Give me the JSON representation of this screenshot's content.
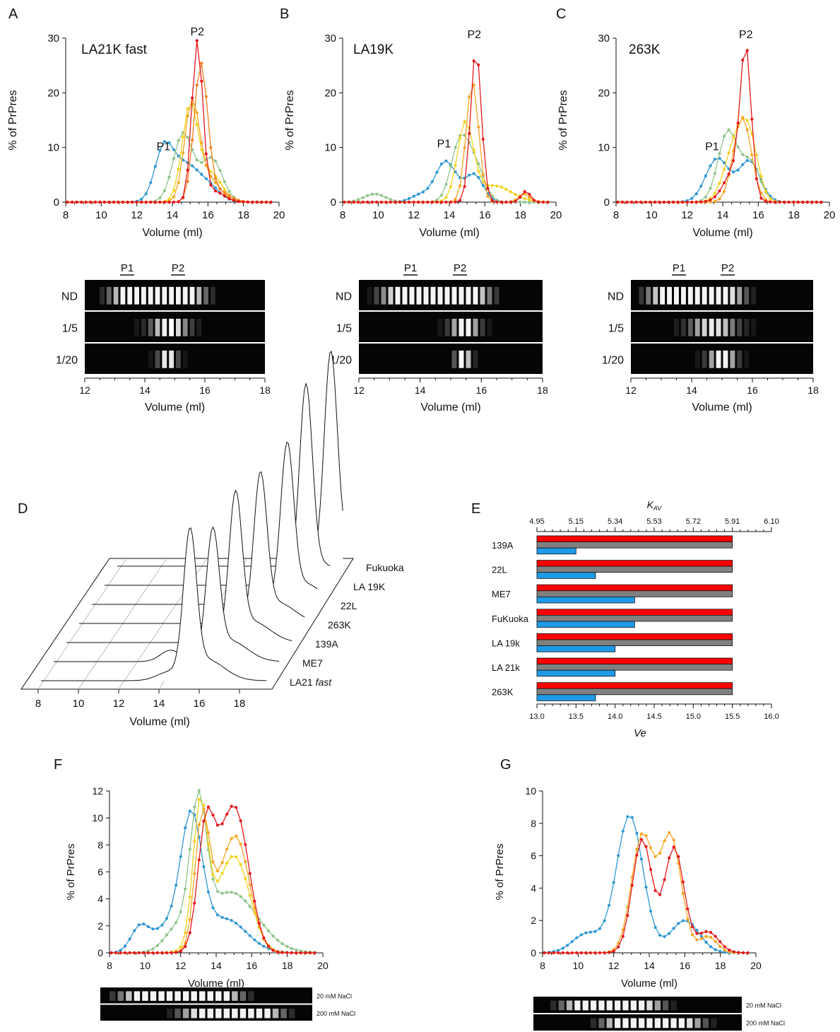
{
  "panels": {
    "A": {
      "letter": "A",
      "label": "LA21K fast",
      "p1": "P1",
      "p2": "P2"
    },
    "B": {
      "letter": "B",
      "label": "LA19K",
      "p1": "P1",
      "p2": "P2"
    },
    "C": {
      "letter": "C",
      "label": "263K",
      "p1": "P1",
      "p2": "P2"
    },
    "D": {
      "letter": "D"
    },
    "E": {
      "letter": "E"
    },
    "F": {
      "letter": "F"
    },
    "G": {
      "letter": "G"
    }
  },
  "common": {
    "ylabel": "% of PrPres",
    "xlabel": "Volume (ml)",
    "blot_rows": [
      "ND",
      "1/5",
      "1/20"
    ]
  },
  "colors": {
    "red": "#e3171b",
    "dark_orange": "#f07f1d",
    "orange": "#f6a623",
    "yellow": "#f2d21f",
    "green": "#8fc48b",
    "blue": "#2e97d4",
    "bar_red": "#ff0000",
    "bar_grey": "#808080",
    "bar_blue": "#1e9be8"
  },
  "chart_data": [
    {
      "panel": "A",
      "type": "line",
      "title": "LA21K fast",
      "xlabel": "Volume (ml)",
      "ylabel": "% of PrPres",
      "xlim": [
        8,
        20
      ],
      "ylim": [
        0,
        30
      ],
      "xticks": [
        8,
        10,
        12,
        14,
        16,
        18,
        20
      ],
      "yticks": [
        0,
        10,
        20,
        30
      ],
      "annotations": [
        {
          "text": "P1",
          "x": 13.5,
          "y": 9.5
        },
        {
          "text": "P2",
          "x": 15.4,
          "y": 30.5
        }
      ],
      "series": [
        {
          "color": "blue",
          "peaks": [
            [
              13.5,
              8,
              0.5
            ],
            [
              14.7,
              7,
              0.9
            ],
            [
              16.2,
              1.6,
              0.6
            ]
          ]
        },
        {
          "color": "green",
          "peaks": [
            [
              14.6,
              12.5,
              0.55
            ],
            [
              16.2,
              8,
              0.6
            ]
          ]
        },
        {
          "color": "yellow",
          "peaks": [
            [
              15.0,
              17.5,
              0.45
            ],
            [
              16.2,
              5,
              0.6
            ]
          ]
        },
        {
          "color": "orange",
          "peaks": [
            [
              15.1,
              18,
              0.42
            ],
            [
              16.1,
              4,
              0.6
            ]
          ]
        },
        {
          "color": "dark_orange",
          "peaks": [
            [
              15.6,
              25,
              0.38
            ],
            [
              16.6,
              2,
              0.6
            ]
          ]
        },
        {
          "color": "red",
          "peaks": [
            [
              15.4,
              29,
              0.3
            ],
            [
              16.3,
              2,
              0.6
            ]
          ]
        }
      ]
    },
    {
      "panel": "B",
      "type": "line",
      "title": "LA19K",
      "xlabel": "Volume (ml)",
      "ylabel": "% of PrPres",
      "xlim": [
        8,
        20
      ],
      "ylim": [
        0,
        30
      ],
      "xticks": [
        8,
        10,
        12,
        14,
        16,
        18,
        20
      ],
      "yticks": [
        0,
        10,
        20,
        30
      ],
      "annotations": [
        {
          "text": "P1",
          "x": 13.7,
          "y": 10
        },
        {
          "text": "P2",
          "x": 15.4,
          "y": 30
        }
      ],
      "series": [
        {
          "color": "blue",
          "peaks": [
            [
              13.8,
              7.5,
              0.6
            ],
            [
              15.4,
              5,
              0.5
            ],
            [
              12.3,
              1.2,
              0.5
            ]
          ]
        },
        {
          "color": "green",
          "peaks": [
            [
              14.6,
              11,
              0.5
            ],
            [
              9.8,
              1.5,
              0.6
            ],
            [
              15.5,
              6,
              0.5
            ]
          ]
        },
        {
          "color": "yellow",
          "peaks": [
            [
              14.9,
              14,
              0.45
            ],
            [
              16.5,
              3,
              1.0
            ]
          ]
        },
        {
          "color": "orange",
          "peaks": [
            [
              15.3,
              22,
              0.35
            ],
            [
              18.2,
              1.5,
              0.3
            ]
          ]
        },
        {
          "color": "red",
          "peaks": [
            [
              15.5,
              28,
              0.3
            ],
            [
              18.3,
              2,
              0.25
            ]
          ]
        }
      ]
    },
    {
      "panel": "C",
      "type": "line",
      "title": "263K",
      "xlabel": "Volume (ml)",
      "ylabel": "% of PrPres",
      "xlim": [
        8,
        20
      ],
      "ylim": [
        0,
        30
      ],
      "xticks": [
        8,
        10,
        12,
        14,
        16,
        18,
        20
      ],
      "yticks": [
        0,
        10,
        20,
        30
      ],
      "annotations": [
        {
          "text": "P1",
          "x": 13.4,
          "y": 9.5
        },
        {
          "text": "P2",
          "x": 15.3,
          "y": 30
        }
      ],
      "series": [
        {
          "color": "blue",
          "peaks": [
            [
              13.7,
              8,
              0.65
            ],
            [
              15.5,
              7.5,
              0.6
            ]
          ]
        },
        {
          "color": "green",
          "peaks": [
            [
              14.3,
              13,
              0.55
            ],
            [
              15.6,
              7,
              0.5
            ]
          ]
        },
        {
          "color": "yellow",
          "peaks": [
            [
              14.7,
              10,
              0.6
            ],
            [
              15.5,
              10,
              0.5
            ]
          ]
        },
        {
          "color": "orange",
          "peaks": [
            [
              15.1,
              15.5,
              0.5
            ]
          ]
        },
        {
          "color": "red",
          "peaks": [
            [
              15.3,
              25.5,
              0.3
            ],
            [
              14.7,
              6,
              0.6
            ]
          ]
        }
      ]
    },
    {
      "panel": "E",
      "type": "bar",
      "categories": [
        "139A",
        "22L",
        "ME7",
        "FuKuoka",
        "LA 19k",
        "LA 21k",
        "263K"
      ],
      "xlabel": "Ve",
      "x2label": "KAV",
      "xlim": [
        13.0,
        16.0
      ],
      "xticks": [
        "13.0",
        "13.5",
        "14.0",
        "14.5",
        "15.0",
        "15.5",
        "16.0"
      ],
      "x2ticks": [
        "4.95",
        "5.15",
        "5.34",
        "5.53",
        "5.72",
        "5.91",
        "6.10"
      ],
      "series": [
        {
          "color": "bar_red",
          "values": [
            15.5,
            15.5,
            15.5,
            15.5,
            15.5,
            15.5,
            15.5
          ]
        },
        {
          "color": "bar_grey",
          "values": [
            15.5,
            15.5,
            15.5,
            15.5,
            15.5,
            15.5,
            15.5
          ]
        },
        {
          "color": "bar_blue",
          "values": [
            13.5,
            13.75,
            14.25,
            14.25,
            14.0,
            14.0,
            13.75
          ]
        }
      ]
    },
    {
      "panel": "F",
      "type": "line",
      "xlabel": "Volume (ml)",
      "ylabel": "% of PrPres",
      "xlim": [
        8,
        20
      ],
      "ylim": [
        0,
        12
      ],
      "xticks": [
        8,
        10,
        12,
        14,
        16,
        18,
        20
      ],
      "yticks": [
        0,
        2,
        4,
        6,
        8,
        10,
        12
      ],
      "blot_labels": [
        "20 mM NaCl",
        "200 mM NaCl"
      ],
      "series": [
        {
          "color": "blue",
          "peaks": [
            [
              12.6,
              9.5,
              0.6
            ],
            [
              9.7,
              1.8,
              0.5
            ],
            [
              11.2,
              1.8,
              0.8
            ],
            [
              14.5,
              2.5,
              1.2
            ]
          ]
        },
        {
          "color": "green",
          "peaks": [
            [
              13.0,
              9.5,
              0.45
            ],
            [
              14.8,
              4.5,
              1.5
            ],
            [
              11.8,
              1.5,
              0.7
            ]
          ]
        },
        {
          "color": "yellow",
          "peaks": [
            [
              13.1,
              10,
              0.4
            ],
            [
              15.2,
              5,
              0.8
            ],
            [
              14.3,
              3,
              1.0
            ]
          ]
        },
        {
          "color": "orange",
          "peaks": [
            [
              13.2,
              9,
              0.4
            ],
            [
              15.3,
              6.5,
              0.7
            ],
            [
              14.3,
              4,
              0.8
            ]
          ]
        },
        {
          "color": "red",
          "peaks": [
            [
              13.4,
              7.5,
              0.45
            ],
            [
              15.3,
              7,
              0.7
            ],
            [
              14.4,
              6,
              0.8
            ]
          ]
        }
      ]
    },
    {
      "panel": "G",
      "type": "line",
      "xlabel": "Volume (ml)",
      "ylabel": "% of PrPres",
      "xlim": [
        8,
        20
      ],
      "ylim": [
        0,
        10
      ],
      "xticks": [
        8,
        10,
        12,
        14,
        16,
        18,
        20
      ],
      "yticks": [
        0,
        2,
        4,
        6,
        8,
        10
      ],
      "blot_labels": [
        "20 mM NaCl",
        "200 mM NaCl"
      ],
      "series": [
        {
          "color": "blue",
          "peaks": [
            [
              12.9,
              8.5,
              0.75
            ],
            [
              10.5,
              1.2,
              0.8
            ],
            [
              16.0,
              2.0,
              0.8
            ]
          ]
        },
        {
          "color": "orange",
          "peaks": [
            [
              13.6,
              7.2,
              0.6
            ],
            [
              15.2,
              7.2,
              0.6
            ],
            [
              17.3,
              1.0,
              0.5
            ]
          ]
        },
        {
          "color": "red",
          "peaks": [
            [
              13.6,
              7.0,
              0.55
            ],
            [
              15.4,
              6.5,
              0.55
            ],
            [
              17.3,
              1.3,
              0.6
            ]
          ]
        }
      ]
    }
  ],
  "panel_d": {
    "xlabel": "Volume (ml)",
    "xticks": [
      8,
      10,
      12,
      14,
      16,
      18
    ],
    "strains": [
      "LA21",
      "ME7",
      "139A",
      "263K",
      "22L",
      "LA 19K",
      "Fukuoka"
    ],
    "first_suffix": "fast"
  }
}
